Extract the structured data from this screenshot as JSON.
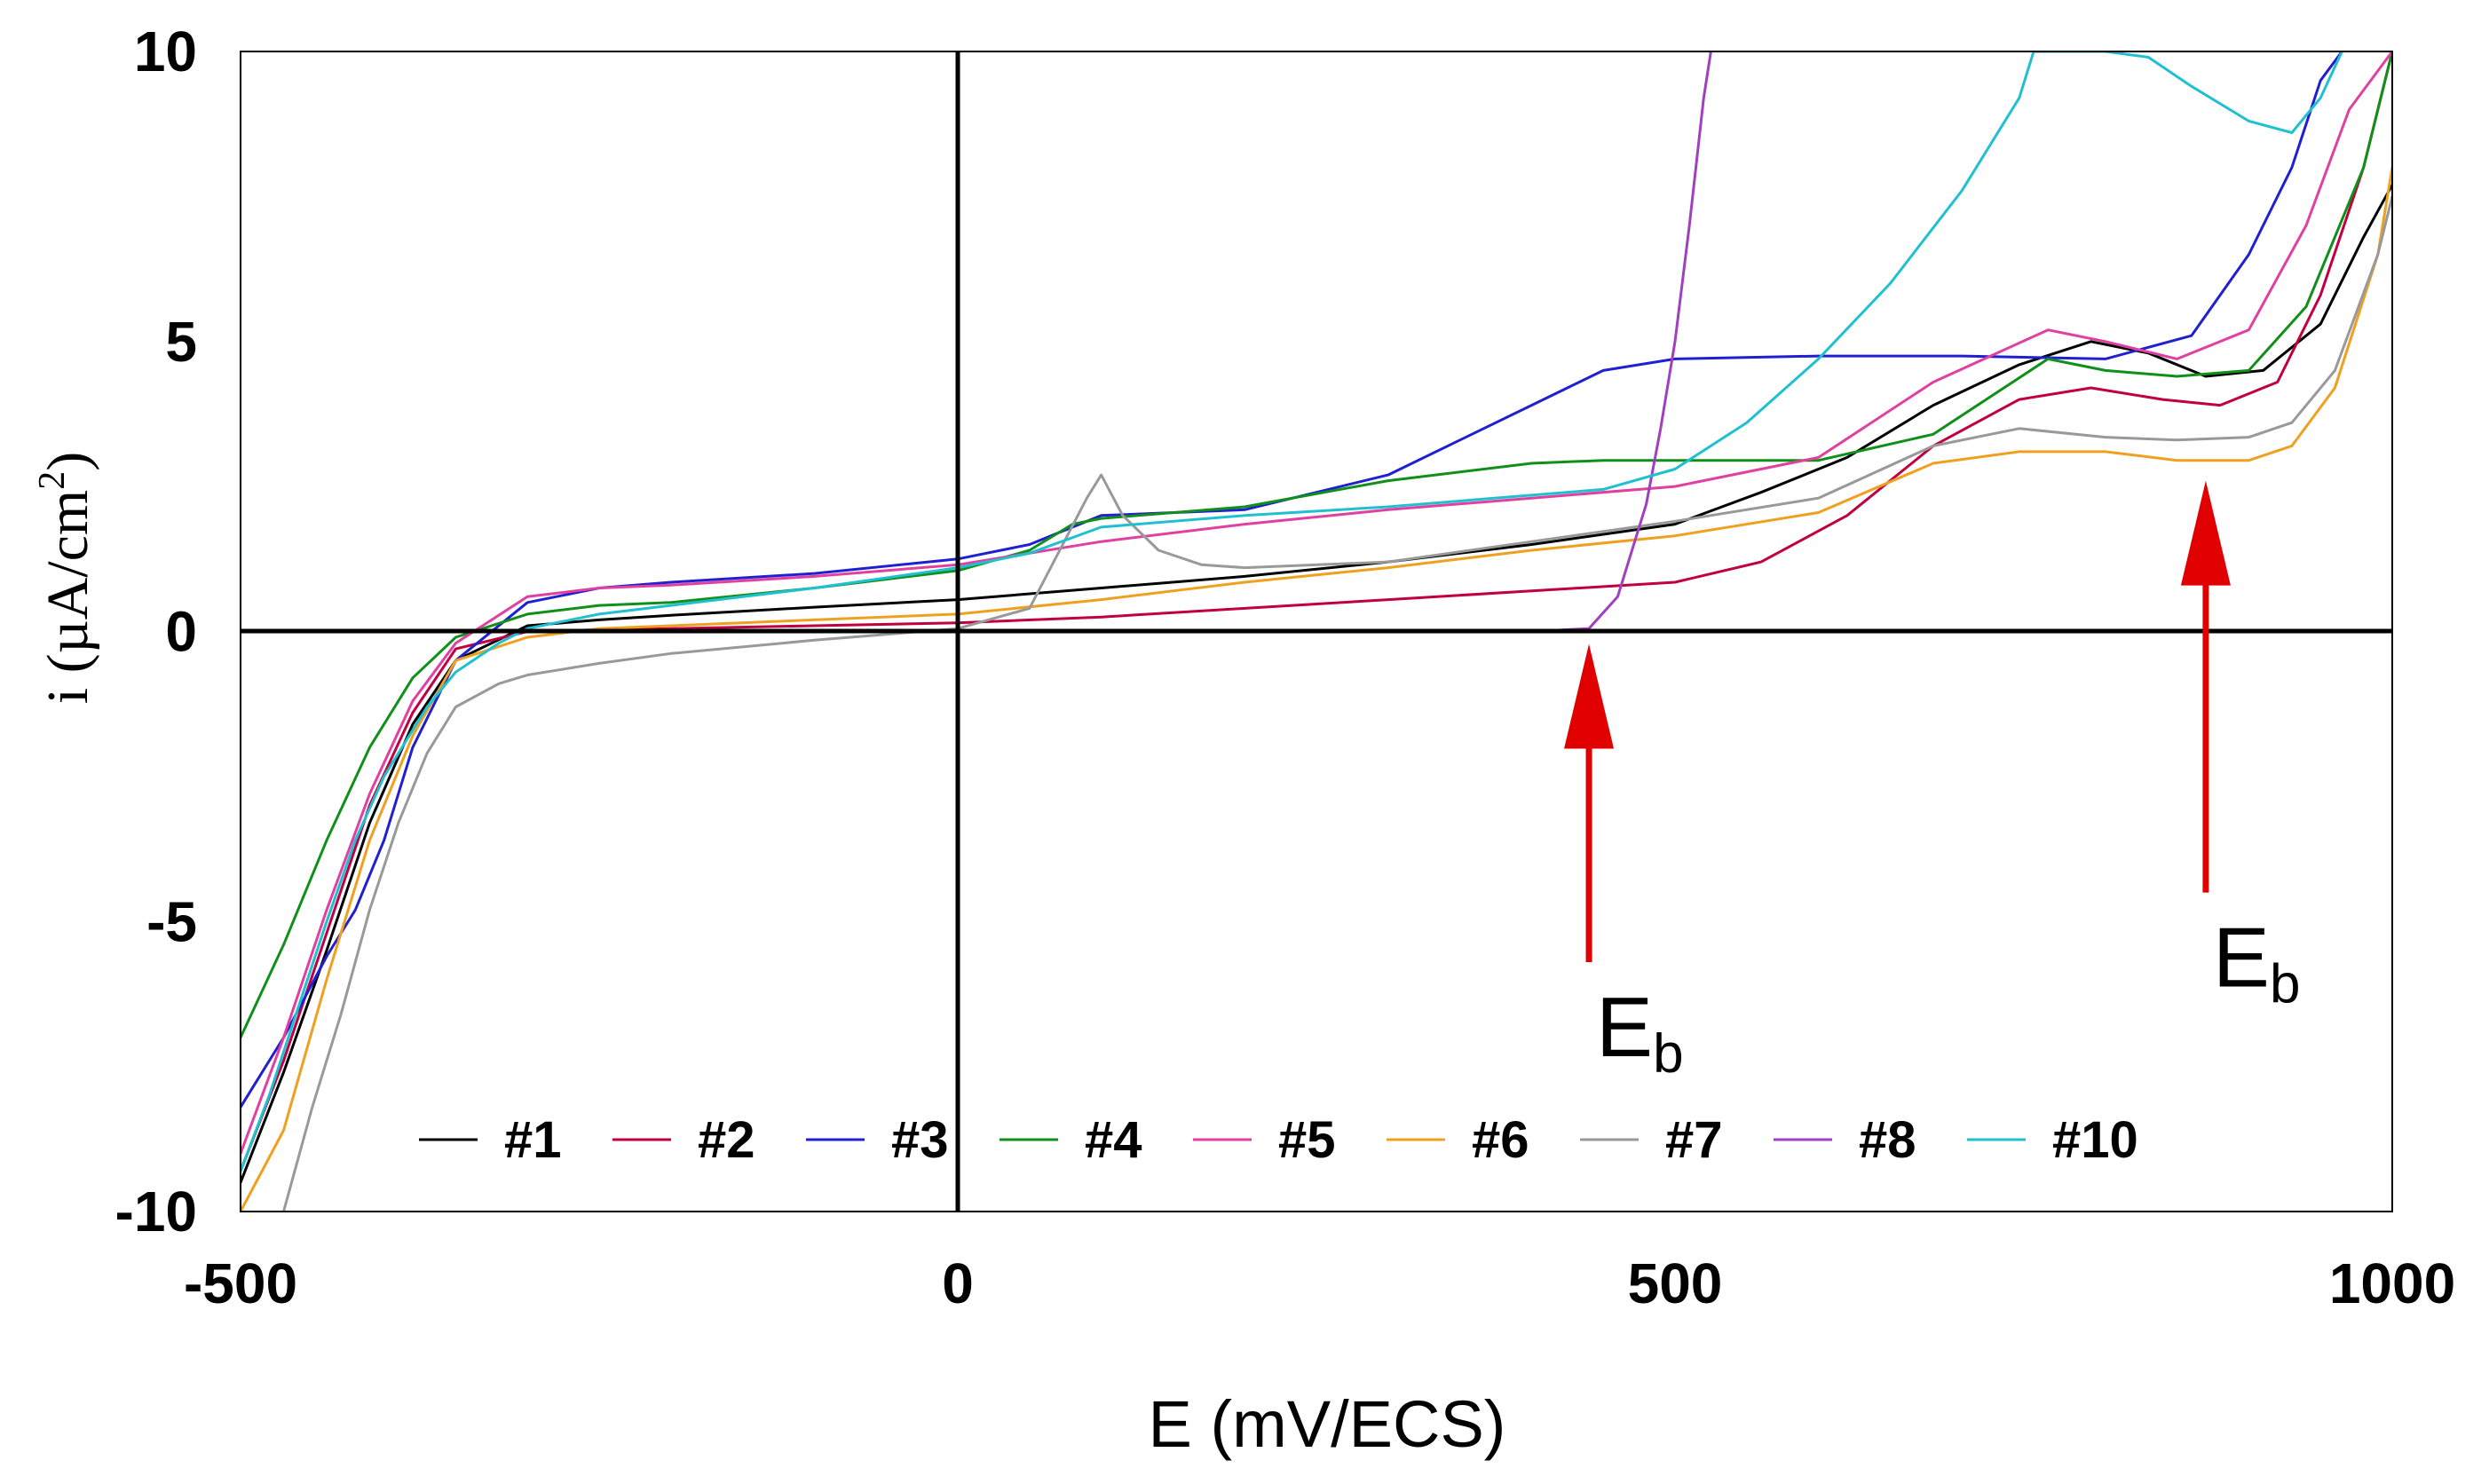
{
  "chart_data": {
    "type": "line",
    "title": "",
    "xlabel": "E (mV/ECS)",
    "ylabel": {
      "prefix": "i (µA/cm",
      "superscript": "2",
      "suffix": ")"
    },
    "xlim": [
      -500,
      1000
    ],
    "ylim": [
      -10,
      10
    ],
    "xticks": [
      -500,
      0,
      500,
      1000
    ],
    "yticks": [
      -10,
      -5,
      0,
      5,
      10
    ],
    "xtick_labels": [
      "-500",
      "0",
      "500",
      "1000"
    ],
    "ytick_labels": [
      "-10",
      "-5",
      "0",
      "5",
      "10"
    ],
    "grid": false,
    "legend_position": "bottom-center",
    "series": [
      {
        "name": "#1",
        "color": "#000000",
        "x": [
          -500,
          -470,
          -440,
          -410,
          -380,
          -350,
          -300,
          -250,
          -200,
          -100,
          0,
          100,
          200,
          300,
          400,
          500,
          560,
          620,
          680,
          740,
          790,
          830,
          870,
          910,
          950,
          980,
          1000
        ],
        "y": [
          -9.5,
          -7.6,
          -5.5,
          -3.3,
          -1.6,
          -0.5,
          0.1,
          0.2,
          0.28,
          0.42,
          0.55,
          0.75,
          0.95,
          1.2,
          1.5,
          1.85,
          2.4,
          3.0,
          3.9,
          4.6,
          5.0,
          4.8,
          4.4,
          4.5,
          5.3,
          6.8,
          7.7
        ]
      },
      {
        "name": "#2",
        "color": "#c00040",
        "x": [
          -500,
          -470,
          -440,
          -410,
          -380,
          -350,
          -300,
          -250,
          -200,
          -100,
          0,
          100,
          200,
          300,
          400,
          500,
          560,
          620,
          680,
          740,
          790,
          840,
          880,
          920,
          950,
          980,
          1000
        ],
        "y": [
          -9.3,
          -7.4,
          -5.2,
          -3.0,
          -1.4,
          -0.3,
          0.0,
          0.03,
          0.05,
          0.1,
          0.15,
          0.25,
          0.4,
          0.55,
          0.7,
          0.85,
          1.2,
          2.0,
          3.2,
          4.0,
          4.2,
          4.0,
          3.9,
          4.3,
          5.8,
          8.0,
          10.0
        ]
      },
      {
        "name": "#3",
        "color": "#2020d0",
        "x": [
          -500,
          -470,
          -440,
          -420,
          -400,
          -380,
          -350,
          -300,
          -250,
          -200,
          -100,
          0,
          50,
          100,
          200,
          300,
          400,
          450,
          500,
          600,
          700,
          800,
          860,
          900,
          930,
          950,
          965
        ],
        "y": [
          -8.2,
          -7.0,
          -5.6,
          -4.8,
          -3.6,
          -2.0,
          -0.5,
          0.5,
          0.75,
          0.85,
          1.0,
          1.25,
          1.5,
          2.0,
          2.1,
          2.7,
          3.9,
          4.5,
          4.7,
          4.75,
          4.75,
          4.7,
          5.1,
          6.5,
          8.0,
          9.5,
          10.0
        ]
      },
      {
        "name": "#4",
        "color": "#10901a",
        "x": [
          -500,
          -470,
          -440,
          -410,
          -380,
          -350,
          -300,
          -250,
          -200,
          -100,
          0,
          50,
          80,
          100,
          200,
          300,
          400,
          450,
          500,
          600,
          680,
          760,
          800,
          850,
          900,
          940,
          980,
          1000
        ],
        "y": [
          -7.0,
          -5.4,
          -3.6,
          -2.0,
          -0.8,
          -0.1,
          0.3,
          0.45,
          0.5,
          0.75,
          1.05,
          1.4,
          1.85,
          1.95,
          2.15,
          2.6,
          2.9,
          2.95,
          2.95,
          2.95,
          3.4,
          4.7,
          4.5,
          4.4,
          4.5,
          5.6,
          8.0,
          10.0
        ]
      },
      {
        "name": "#5",
        "color": "#e040a0",
        "x": [
          -500,
          -470,
          -440,
          -410,
          -380,
          -350,
          -300,
          -250,
          -200,
          -100,
          0,
          100,
          200,
          300,
          400,
          500,
          600,
          680,
          760,
          800,
          850,
          900,
          940,
          970,
          1000
        ],
        "y": [
          -9.0,
          -7.0,
          -4.8,
          -2.8,
          -1.2,
          -0.2,
          0.6,
          0.75,
          0.8,
          0.95,
          1.15,
          1.55,
          1.85,
          2.1,
          2.3,
          2.5,
          3.0,
          4.3,
          5.2,
          5.0,
          4.7,
          5.2,
          7.0,
          9.0,
          10.0
        ]
      },
      {
        "name": "#6",
        "color": "#f0a020",
        "x": [
          -500,
          -470,
          -440,
          -410,
          -380,
          -350,
          -300,
          -250,
          -200,
          -100,
          0,
          100,
          200,
          300,
          400,
          500,
          600,
          680,
          740,
          800,
          850,
          900,
          930,
          960,
          990,
          1000
        ],
        "y": [
          -10.0,
          -8.6,
          -6.0,
          -3.6,
          -1.8,
          -0.5,
          -0.1,
          0.05,
          0.1,
          0.2,
          0.3,
          0.55,
          0.85,
          1.1,
          1.4,
          1.65,
          2.05,
          2.9,
          3.1,
          3.1,
          2.95,
          2.95,
          3.2,
          4.2,
          6.5,
          8.0
        ]
      },
      {
        "name": "#7",
        "color": "#999999",
        "x": [
          -470,
          -450,
          -430,
          -410,
          -390,
          -370,
          -350,
          -320,
          -300,
          -250,
          -200,
          -100,
          0,
          50,
          90,
          100,
          115,
          140,
          170,
          200,
          300,
          400,
          500,
          600,
          680,
          740,
          800,
          850,
          900,
          930,
          960,
          990,
          1000
        ],
        "y": [
          -10.0,
          -8.2,
          -6.6,
          -4.8,
          -3.3,
          -2.1,
          -1.3,
          -0.9,
          -0.75,
          -0.55,
          -0.38,
          -0.15,
          0.05,
          0.4,
          2.3,
          2.7,
          2.0,
          1.4,
          1.15,
          1.1,
          1.2,
          1.55,
          1.9,
          2.3,
          3.2,
          3.5,
          3.35,
          3.3,
          3.35,
          3.6,
          4.5,
          6.5,
          7.5
        ]
      },
      {
        "name": "#8",
        "color": "#a040c0",
        "x": [
          -500,
          0,
          200,
          400,
          440,
          460,
          480,
          490,
          500,
          510,
          520,
          525
        ],
        "y": [
          0.0,
          0.0,
          0.0,
          0.0,
          0.05,
          0.6,
          2.2,
          3.5,
          5.0,
          7.0,
          9.2,
          10.0
        ]
      },
      {
        "name": "#10",
        "color": "#20c0d0",
        "x": [
          -500,
          -480,
          -460,
          -440,
          -420,
          -400,
          -370,
          -350,
          -320,
          -300,
          -250,
          -200,
          -100,
          0,
          50,
          100,
          200,
          300,
          400,
          450,
          500,
          550,
          600,
          650,
          700,
          740,
          750,
          800,
          830,
          860,
          900,
          930,
          950,
          965
        ],
        "y": [
          -9.3,
          -8.0,
          -6.5,
          -5.0,
          -3.6,
          -2.5,
          -1.3,
          -0.7,
          -0.2,
          0.05,
          0.3,
          0.45,
          0.75,
          1.1,
          1.35,
          1.8,
          2.0,
          2.15,
          2.35,
          2.45,
          2.8,
          3.6,
          4.7,
          6.0,
          7.6,
          9.2,
          10.0,
          10.0,
          9.9,
          9.4,
          8.8,
          8.6,
          9.2,
          10.0
        ]
      }
    ],
    "annotations": [
      {
        "text": "E",
        "subscript": "b",
        "arrow_x": 440,
        "arrow_tip_y": -1.0,
        "arrow_tail_y": -5.7,
        "color": "#e00000"
      },
      {
        "text": "E",
        "subscript": "b",
        "arrow_x": 870,
        "arrow_tip_y": 2.6,
        "arrow_tail_y": -4.5,
        "color": "#e00000"
      }
    ]
  }
}
